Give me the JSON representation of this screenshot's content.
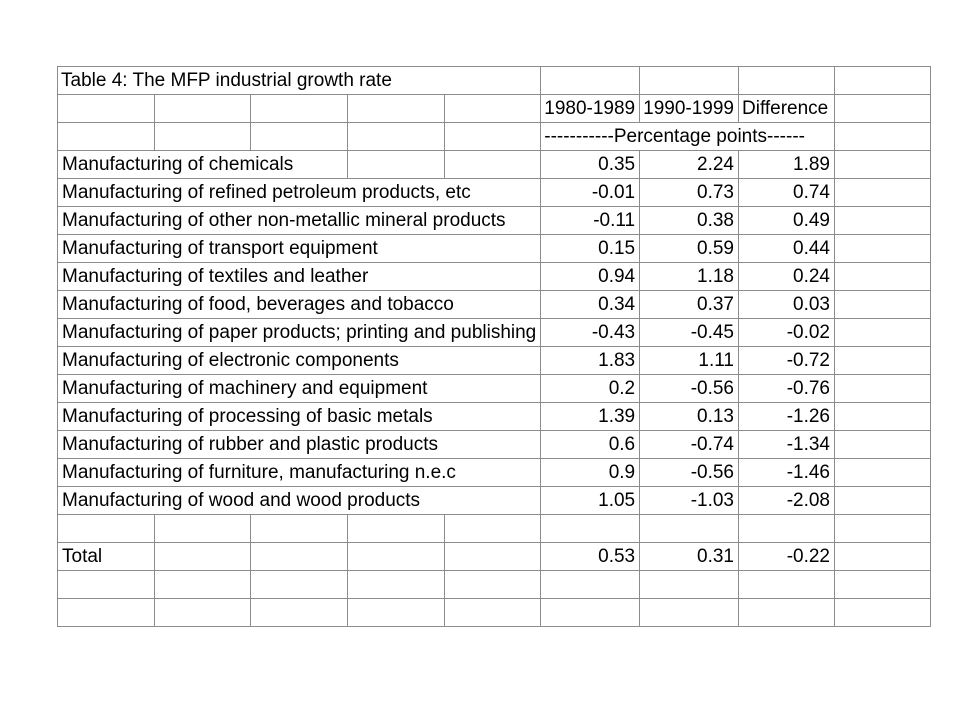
{
  "table": {
    "title": "Table 4: The MFP industrial growth rate",
    "columns": {
      "period1": "1980-1989",
      "period2": "1990-1999",
      "difference": "Difference"
    },
    "unit_note": "-----------Percentage points------",
    "rows": [
      {
        "label": "Manufacturing of chemicals",
        "v1": "0.35",
        "v2": "2.24",
        "diff": "1.89"
      },
      {
        "label": "Manufacturing of refined petroleum products, etc",
        "v1": "-0.01",
        "v2": "0.73",
        "diff": "0.74"
      },
      {
        "label": "Manufacturing of other non-metallic mineral products",
        "v1": "-0.11",
        "v2": "0.38",
        "diff": "0.49"
      },
      {
        "label": "Manufacturing of transport equipment",
        "v1": "0.15",
        "v2": "0.59",
        "diff": "0.44"
      },
      {
        "label": "Manufacturing of textiles and leather",
        "v1": "0.94",
        "v2": "1.18",
        "diff": "0.24"
      },
      {
        "label": "Manufacturing of food, beverages and tobacco",
        "v1": "0.34",
        "v2": "0.37",
        "diff": "0.03"
      },
      {
        "label": "Manufacturing of paper products; printing and publishing",
        "v1": "-0.43",
        "v2": "-0.45",
        "diff": "-0.02"
      },
      {
        "label": "Manufacturing of electronic components",
        "v1": "1.83",
        "v2": "1.11",
        "diff": "-0.72"
      },
      {
        "label": "Manufacturing of machinery and equipment",
        "v1": "0.2",
        "v2": "-0.56",
        "diff": "-0.76"
      },
      {
        "label": "Manufacturing of processing of basic metals",
        "v1": "1.39",
        "v2": "0.13",
        "diff": "-1.26"
      },
      {
        "label": "Manufacturing of rubber and plastic products",
        "v1": "0.6",
        "v2": "-0.74",
        "diff": "-1.34"
      },
      {
        "label": "Manufacturing of furniture, manufacturing n.e.c",
        "v1": "0.9",
        "v2": "-0.56",
        "diff": "-1.46"
      },
      {
        "label": "Manufacturing of wood and wood products",
        "v1": "1.05",
        "v2": "-1.03",
        "diff": "-2.08"
      }
    ],
    "total": {
      "label": "Total",
      "v1": "0.53",
      "v2": "0.31",
      "diff": "-0.22"
    }
  }
}
